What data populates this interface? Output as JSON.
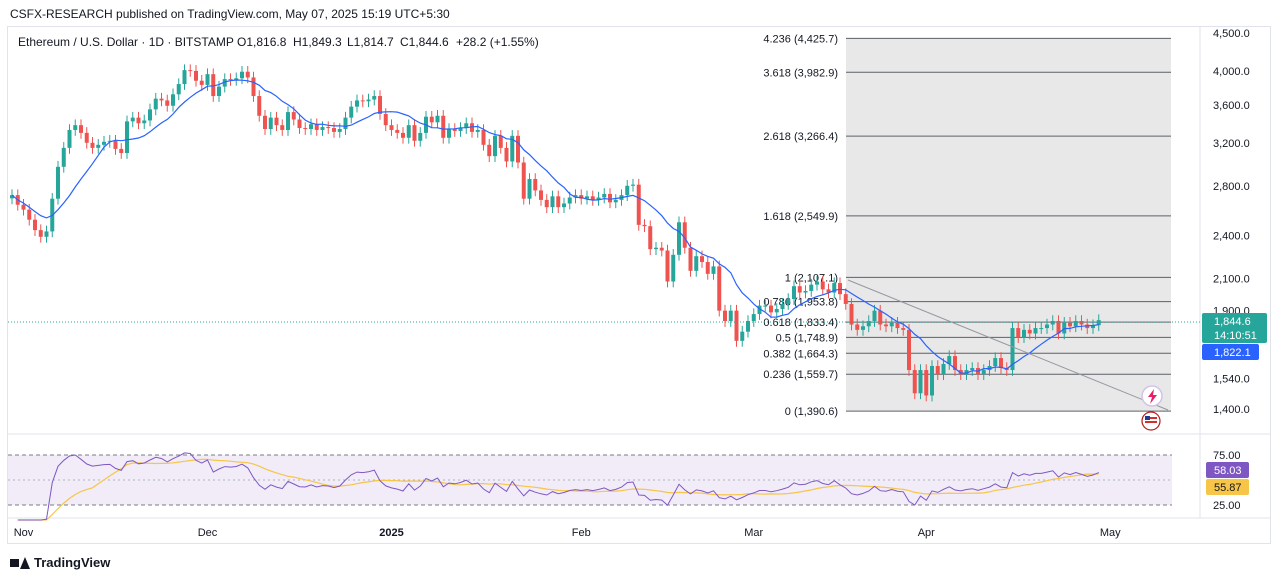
{
  "header": {
    "published": "CSFX-RESEARCH published on TradingView.com, May 07, 2025 15:19 UTC+5:30"
  },
  "footer": {
    "brand": "TradingView"
  },
  "colors": {
    "up": "#26a69a",
    "down": "#ef5350",
    "ma": "#2962ff",
    "rsi": "#7e57c2",
    "rsi_ma": "#f7c548",
    "fib_zone": "#e6e6e6",
    "price_badge": "#26a69a",
    "ma_badge": "#2962ff"
  },
  "chart_data": [
    {
      "type": "candlestick",
      "title": "Ethereum / U.S. Dollar · 1D · BITSTAMP",
      "ohlc_summary": {
        "open": "O1,816.8",
        "high": "H1,849.3",
        "low": "L1,814.7",
        "close": "C1,844.6",
        "change": "+28.2 (+1.55%)"
      },
      "x_ticks": [
        "Nov",
        "Dec",
        "2025",
        "Feb",
        "Mar",
        "Apr",
        "May"
      ],
      "y_ticks": [
        "4,500.0",
        "4,000.0",
        "3,600.0",
        "3,200.0",
        "2,800.0",
        "2,400.0",
        "2,100.0",
        "1,900.0",
        "1,540.0",
        "1,400.0"
      ],
      "y_scale": "log",
      "last_price": "1,844.6",
      "countdown": "14:10:51",
      "ma_value": "1,822.1",
      "close_series": [
        2720,
        2640,
        2600,
        2520,
        2440,
        2390,
        2430,
        2690,
        2970,
        3150,
        3330,
        3380,
        3300,
        3200,
        3150,
        3180,
        3210,
        3220,
        3140,
        3100,
        3420,
        3460,
        3400,
        3430,
        3550,
        3670,
        3650,
        3590,
        3720,
        3840,
        4010,
        4000,
        3880,
        3830,
        3960,
        3700,
        3810,
        3900,
        3890,
        3910,
        3990,
        3920,
        3700,
        3480,
        3340,
        3460,
        3380,
        3330,
        3520,
        3440,
        3350,
        3340,
        3390,
        3330,
        3360,
        3350,
        3310,
        3340,
        3460,
        3580,
        3650,
        3640,
        3660,
        3700,
        3500,
        3380,
        3330,
        3300,
        3250,
        3380,
        3220,
        3300,
        3470,
        3410,
        3480,
        3250,
        3340,
        3320,
        3350,
        3400,
        3310,
        3330,
        3180,
        3070,
        3270,
        3150,
        3020,
        3270,
        3010,
        2690,
        2860,
        2760,
        2680,
        2620,
        2710,
        2620,
        2650,
        2700,
        2720,
        2690,
        2710,
        2680,
        2700,
        2730,
        2660,
        2680,
        2720,
        2800,
        2810,
        2480,
        2470,
        2300,
        2310,
        2290,
        2080,
        2260,
        2500,
        2310,
        2150,
        2250,
        2210,
        2130,
        2180,
        1900,
        1840,
        1900,
        1730,
        1780,
        1840,
        1880,
        1930,
        1930,
        1890,
        1910,
        1940,
        1970,
        2050,
        2010,
        2020,
        2060,
        2080,
        2030,
        2010,
        2070,
        2000,
        1940,
        1820,
        1790,
        1810,
        1840,
        1900,
        1820,
        1810,
        1830,
        1800,
        1790,
        1580,
        1470,
        1580,
        1460,
        1600,
        1560,
        1610,
        1650,
        1580,
        1560,
        1580,
        1590,
        1560,
        1580,
        1600,
        1640,
        1590,
        1580,
        1800,
        1750,
        1790,
        1770,
        1800,
        1800,
        1820,
        1840,
        1770,
        1830,
        1810,
        1840,
        1820,
        1800,
        1816,
        1845
      ],
      "fibonacci": [
        {
          "label": "4.236 (4,425.7)",
          "price": 4425.7
        },
        {
          "label": "3.618 (3,982.9)",
          "price": 3982.9
        },
        {
          "label": "2.618 (3,266.4)",
          "price": 3266.4
        },
        {
          "label": "1.618 (2,549.9)",
          "price": 2549.9
        },
        {
          "label": "1 (2,107.1)",
          "price": 2107.1
        },
        {
          "label": "0.786 (1,953.8)",
          "price": 1953.8
        },
        {
          "label": "0.618 (1,833.4)",
          "price": 1833.4
        },
        {
          "label": "0.5 (1,748.9)",
          "price": 1748.9
        },
        {
          "label": "0.382 (1,664.3)",
          "price": 1664.3
        },
        {
          "label": "0.236 (1,559.7)",
          "price": 1559.7
        },
        {
          "label": "0 (1,390.6)",
          "price": 1390.6
        }
      ]
    },
    {
      "type": "line",
      "title": "RSI",
      "y_ticks": [
        "75.00",
        "25.00"
      ],
      "ylim": [
        10,
        90
      ],
      "rsi_value": "58.03",
      "rsi_ma_value": "55.87"
    }
  ]
}
